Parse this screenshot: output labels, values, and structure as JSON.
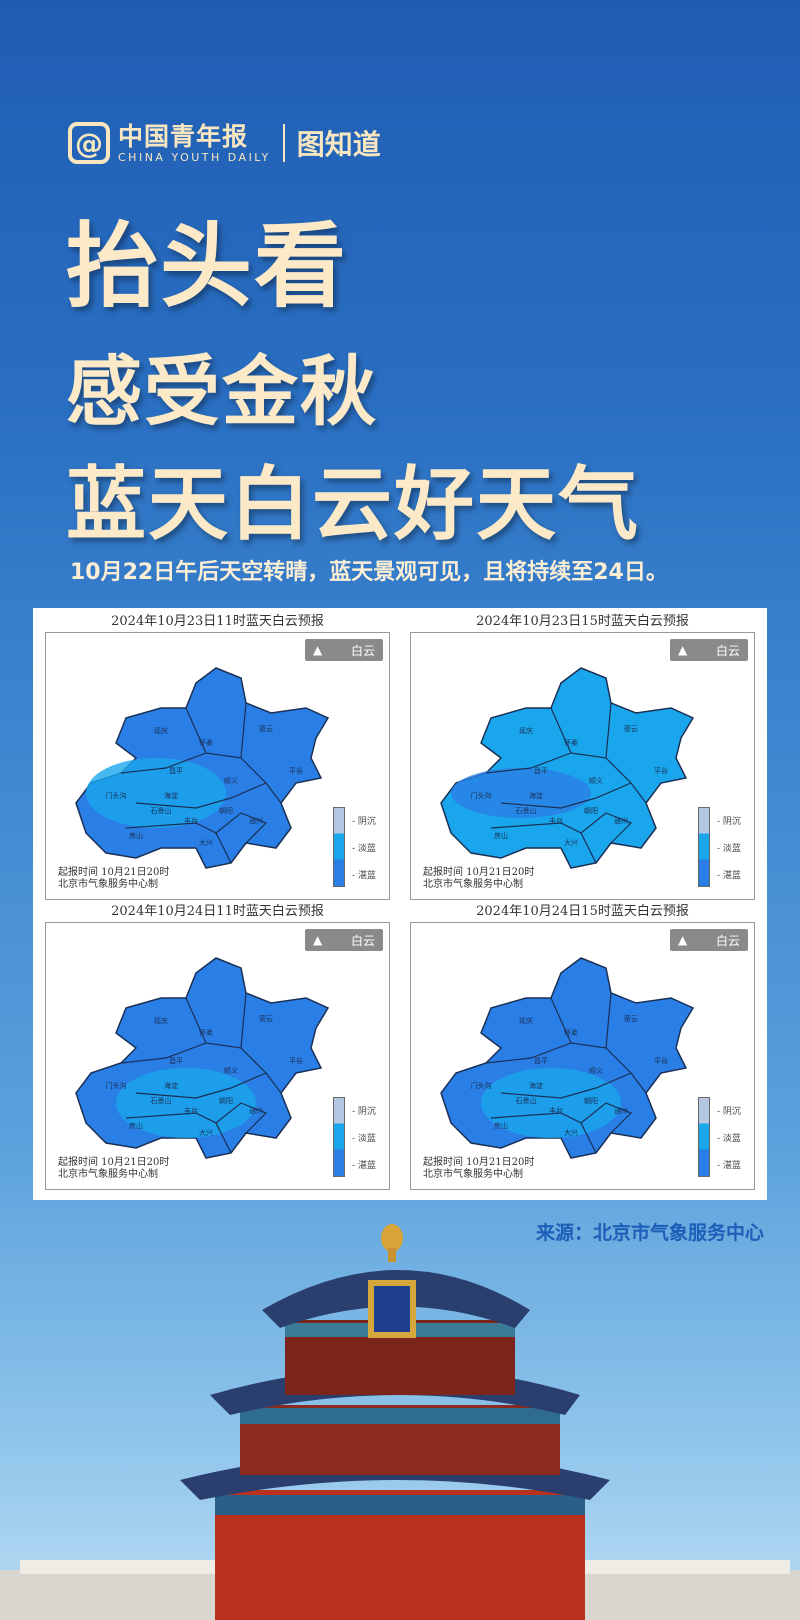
{
  "header": {
    "logo_mark": "@",
    "logo_cn": "中国青年报",
    "logo_en": "CHINA YOUTH DAILY",
    "column": "图知道"
  },
  "title": {
    "line1": "抬头看",
    "line2": "感受金秋",
    "line3": "蓝天白云好天气"
  },
  "subtitle": "10月22日午后天空转晴，蓝天景观可见，且将持续至24日。",
  "maps": [
    {
      "title": "2024年10月23日11时蓝天白云预报",
      "tone": "deep"
    },
    {
      "title": "2024年10月23日15时蓝天白云预报",
      "tone": "light"
    },
    {
      "title": "2024年10月24日11时蓝天白云预报",
      "tone": "mixed"
    },
    {
      "title": "2024年10月24日15时蓝天白云预报",
      "tone": "mixed"
    }
  ],
  "map_common": {
    "badge_icon": "triangle-icon",
    "badge_label": "白云",
    "legend": [
      "阴沉",
      "淡蓝",
      "湛蓝"
    ],
    "footer_line1": "起报时间 10月21日20时",
    "footer_line2": "北京市气象服务中心制",
    "districts": [
      "延庆",
      "怀柔",
      "密云",
      "昌平",
      "平谷",
      "顺义",
      "门头沟",
      "海淀",
      "石景山",
      "朝阳",
      "丰台",
      "房山",
      "大兴",
      "通州"
    ]
  },
  "colors": {
    "deep_blue": "#2a7fe6",
    "light_blue": "#1aa6ec",
    "overcast": "#b5c8e3",
    "title_cream": "#fbe9c8"
  },
  "source": "来源：北京市气象服务中心"
}
